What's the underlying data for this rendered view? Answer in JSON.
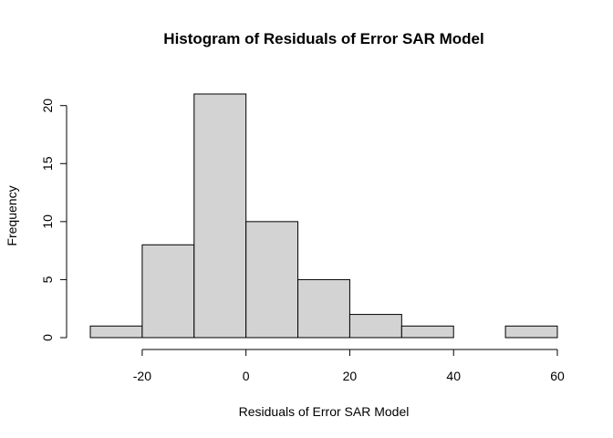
{
  "chart_data": {
    "type": "bar",
    "title": "Histogram of Residuals of Error SAR Model",
    "xlabel": "Residuals of Error SAR Model",
    "ylabel": "Frequency",
    "bin_edges": [
      -30,
      -20,
      -10,
      0,
      10,
      20,
      30,
      40,
      50,
      60
    ],
    "values": [
      1,
      8,
      21,
      10,
      5,
      2,
      1,
      0,
      1
    ],
    "xlim": [
      -30,
      60
    ],
    "ylim": [
      0,
      21
    ],
    "x_ticks": [
      -20,
      0,
      20,
      40,
      60
    ],
    "y_ticks": [
      0,
      5,
      10,
      15,
      20
    ],
    "bar_color": "#d3d3d3",
    "grid": false,
    "legend": "none"
  }
}
